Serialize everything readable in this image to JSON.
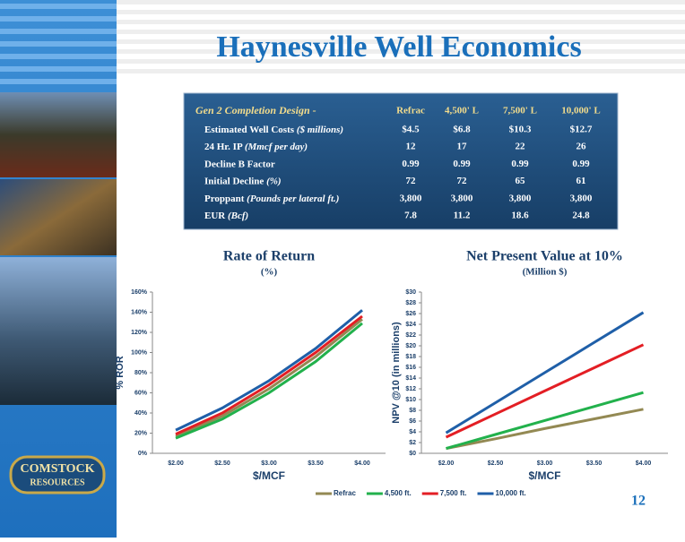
{
  "title": "Haynesville Well Economics",
  "page_number": "12",
  "logo": {
    "line1": "COMSTOCK",
    "line2": "RESOURCES"
  },
  "table": {
    "header": [
      "Gen 2 Completion Design -",
      "Refrac",
      "4,500' L",
      "7,500' L",
      "10,000' L"
    ],
    "rows": [
      {
        "label": "Estimated Well Costs",
        "unit": "($ millions)",
        "values": [
          "$4.5",
          "$6.8",
          "$10.3",
          "$12.7"
        ]
      },
      {
        "label": "24 Hr. IP",
        "unit": "(Mmcf per day)",
        "values": [
          "12",
          "17",
          "22",
          "26"
        ]
      },
      {
        "label": "Decline B Factor",
        "unit": null,
        "values": [
          "0.99",
          "0.99",
          "0.99",
          "0.99"
        ]
      },
      {
        "label": "Initial Decline",
        "unit": "(%)",
        "values": [
          "72",
          "72",
          "65",
          "61"
        ]
      },
      {
        "label": "Proppant",
        "unit": "(Pounds per lateral ft.)",
        "values": [
          "3,800",
          "3,800",
          "3,800",
          "3,800"
        ]
      },
      {
        "label": "EUR",
        "unit": "(Bcf)",
        "values": [
          "7.8",
          "11.2",
          "18.6",
          "24.8"
        ]
      }
    ]
  },
  "chart_data": [
    {
      "type": "line",
      "title": "Rate of Return",
      "subtitle": "(%)",
      "x_label": "$/MCF",
      "y_label": "% ROR",
      "categories": [
        "$2.00",
        "$2.50",
        "$3.00",
        "$3.50",
        "$4.00"
      ],
      "ylim": [
        0,
        160
      ],
      "yticks": [
        {
          "value": 0,
          "label": "0%"
        },
        {
          "value": 20,
          "label": "20%"
        },
        {
          "value": 40,
          "label": "40%"
        },
        {
          "value": 60,
          "label": "60%"
        },
        {
          "value": 80,
          "label": "80%"
        },
        {
          "value": 100,
          "label": "100%"
        },
        {
          "value": 120,
          "label": "120%"
        },
        {
          "value": 140,
          "label": "140%"
        },
        {
          "value": 160,
          "label": "160%"
        }
      ],
      "series": [
        {
          "name": "Refrac",
          "color": "#938953",
          "values": [
            17,
            37,
            64,
            96,
            133
          ]
        },
        {
          "name": "4,500 ft.",
          "color": "#22b14c",
          "values": [
            15,
            34,
            60,
            91,
            129
          ]
        },
        {
          "name": "7,500 ft.",
          "color": "#e31e24",
          "values": [
            19,
            40,
            68,
            100,
            136
          ]
        },
        {
          "name": "10,000 ft.",
          "color": "#1f5fa8",
          "values": [
            23,
            45,
            72,
            104,
            142
          ]
        }
      ]
    },
    {
      "type": "line",
      "title": "Net Present Value at 10%",
      "subtitle": "(Million $)",
      "x_label": "$/MCF",
      "y_label": "NPV @10 (in millions)",
      "categories": [
        "$2.00",
        "$2.50",
        "$3.00",
        "$3.50",
        "$4.00"
      ],
      "ylim": [
        0,
        30
      ],
      "yticks": [
        {
          "value": 0,
          "label": "$0"
        },
        {
          "value": 2,
          "label": "$2"
        },
        {
          "value": 4,
          "label": "$4"
        },
        {
          "value": 6,
          "label": "$6"
        },
        {
          "value": 8,
          "label": "$8"
        },
        {
          "value": 10,
          "label": "$10"
        },
        {
          "value": 12,
          "label": "$12"
        },
        {
          "value": 14,
          "label": "$14"
        },
        {
          "value": 16,
          "label": "$16"
        },
        {
          "value": 18,
          "label": "$18"
        },
        {
          "value": 20,
          "label": "$20"
        },
        {
          "value": 22,
          "label": "$22"
        },
        {
          "value": 24,
          "label": "$24"
        },
        {
          "value": 26,
          "label": "$26"
        },
        {
          "value": 28,
          "label": "$28"
        },
        {
          "value": 30,
          "label": "$30"
        }
      ],
      "series": [
        {
          "color": "#938953",
          "values": [
            0.9,
            2.7,
            4.6,
            6.4,
            8.2
          ]
        },
        {
          "color": "#22b14c",
          "values": [
            0.9,
            3.5,
            6.1,
            8.7,
            11.3
          ]
        },
        {
          "color": "#e31e24",
          "values": [
            3.0,
            7.3,
            11.6,
            15.9,
            20.2
          ]
        },
        {
          "color": "#1f5fa8",
          "values": [
            3.8,
            9.4,
            15.0,
            20.6,
            26.2
          ]
        }
      ]
    }
  ]
}
